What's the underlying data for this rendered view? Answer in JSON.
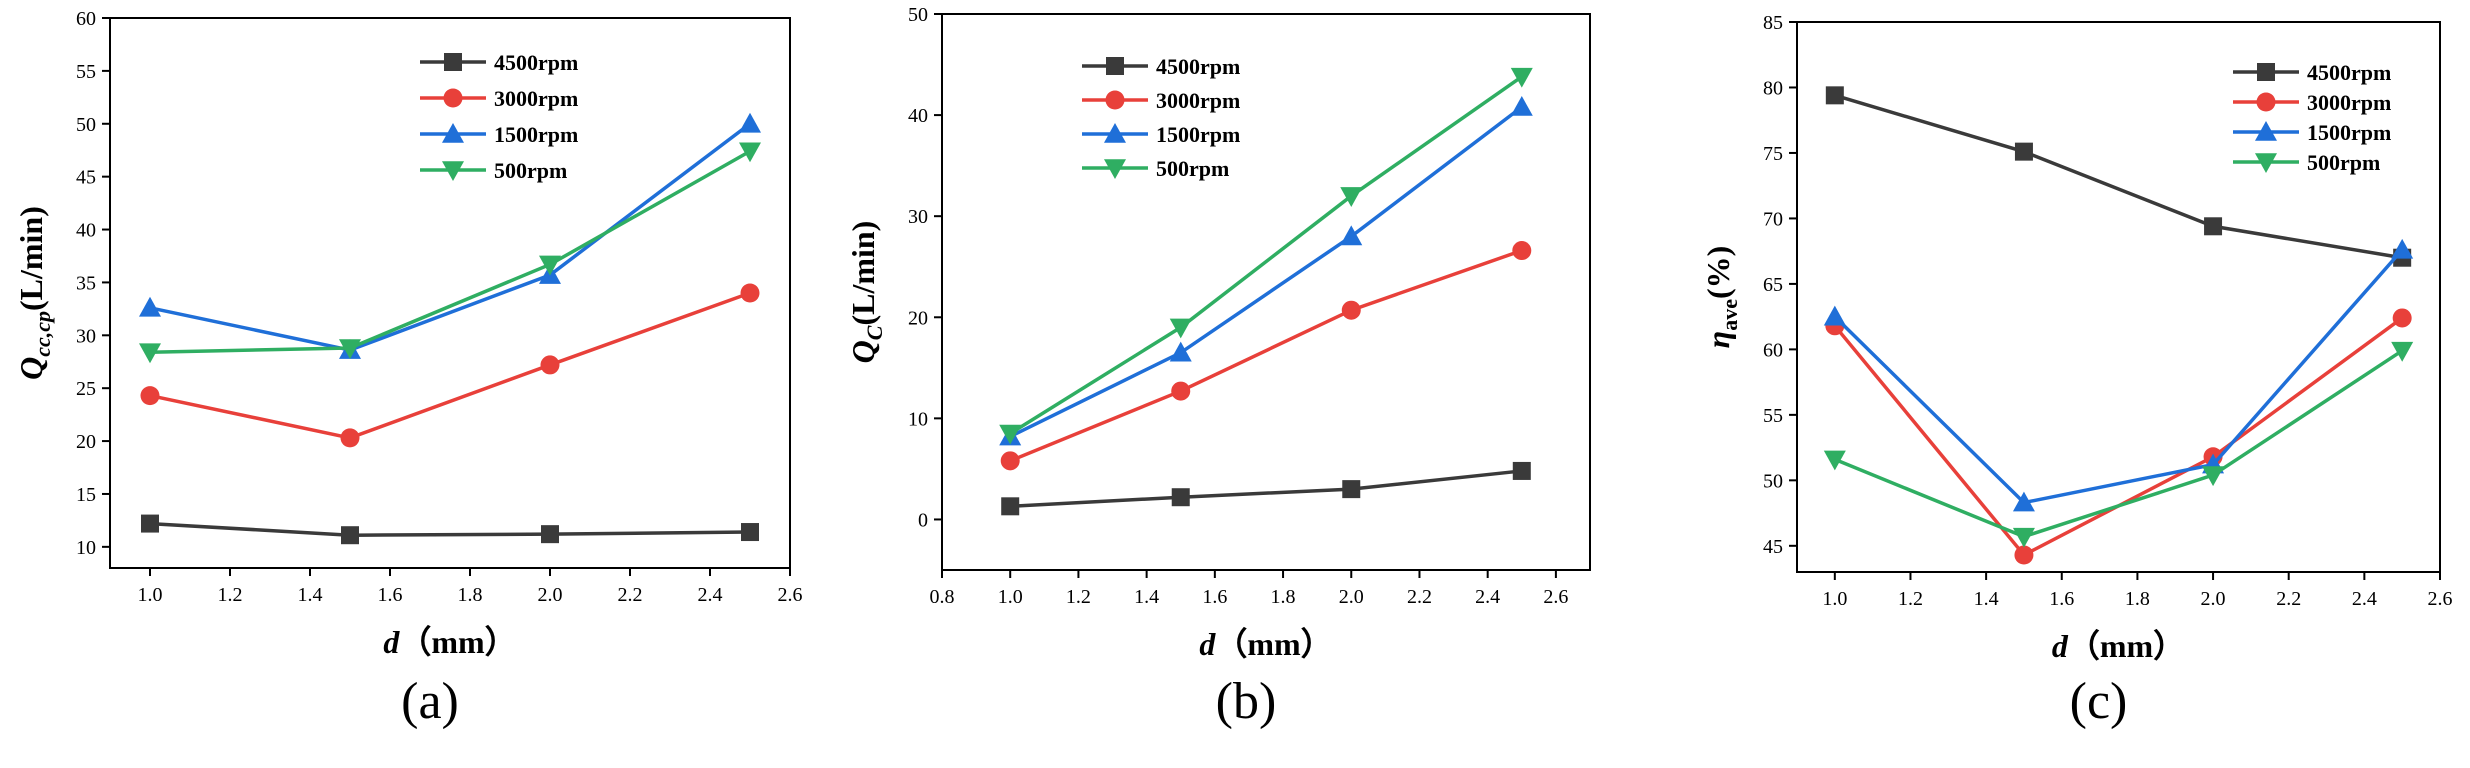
{
  "chart_data": [
    {
      "type": "line",
      "panel_label": "(a)",
      "xlabel": "d（mm）",
      "ylabel": "Q_cc,cp(L/min)",
      "ylabel_parts": {
        "main": "Q",
        "sub": "cc,cp",
        "tail": "(L/min)"
      },
      "xlim": [
        0.9,
        2.6
      ],
      "ylim": [
        8,
        60
      ],
      "xticks": [
        1.0,
        1.2,
        1.4,
        1.6,
        1.8,
        2.0,
        2.2,
        2.4,
        2.6
      ],
      "yticks": [
        10,
        15,
        20,
        25,
        30,
        35,
        40,
        45,
        50,
        55,
        60
      ],
      "legend_position": "top-center",
      "x": [
        1.0,
        1.5,
        2.0,
        2.5
      ],
      "series": [
        {
          "name": "4500rpm",
          "marker": "square",
          "color": "#3a3a3a",
          "values": [
            12.2,
            11.1,
            11.2,
            11.4
          ]
        },
        {
          "name": "3000rpm",
          "marker": "circle",
          "color": "#e8403a",
          "values": [
            24.3,
            20.3,
            27.2,
            34.0
          ]
        },
        {
          "name": "1500rpm",
          "marker": "triangle-up",
          "color": "#1f6fd8",
          "values": [
            32.6,
            28.6,
            35.7,
            50.0
          ]
        },
        {
          "name": "500rpm",
          "marker": "triangle-down",
          "color": "#2fae62",
          "values": [
            28.4,
            28.8,
            36.7,
            47.4
          ]
        }
      ]
    },
    {
      "type": "line",
      "panel_label": "(b)",
      "xlabel": "d（mm）",
      "ylabel": "Q_C(L/min)",
      "ylabel_parts": {
        "main": "Q",
        "sub": "C",
        "tail": "(L/min)"
      },
      "xlim": [
        0.8,
        2.7
      ],
      "ylim": [
        -5,
        50
      ],
      "xticks": [
        0.8,
        1.0,
        1.2,
        1.4,
        1.6,
        1.8,
        2.0,
        2.2,
        2.4,
        2.6
      ],
      "yticks": [
        0,
        10,
        20,
        30,
        40,
        50
      ],
      "legend_position": "top-left",
      "x": [
        1.0,
        1.5,
        2.0,
        2.5
      ],
      "series": [
        {
          "name": "4500rpm",
          "marker": "square",
          "color": "#3a3a3a",
          "values": [
            1.3,
            2.2,
            3.0,
            4.8
          ]
        },
        {
          "name": "3000rpm",
          "marker": "circle",
          "color": "#e8403a",
          "values": [
            5.8,
            12.7,
            20.7,
            26.6
          ]
        },
        {
          "name": "1500rpm",
          "marker": "triangle-up",
          "color": "#1f6fd8",
          "values": [
            8.2,
            16.5,
            28.0,
            40.8
          ]
        },
        {
          "name": "500rpm",
          "marker": "triangle-down",
          "color": "#2fae62",
          "values": [
            8.5,
            19.0,
            32.0,
            43.8
          ]
        }
      ]
    },
    {
      "type": "line",
      "panel_label": "(c)",
      "xlabel": "d（mm）",
      "ylabel": "η_ave(%)",
      "ylabel_parts": {
        "main": "η",
        "sub": "ave",
        "tail": "(%)"
      },
      "xlim": [
        0.9,
        2.6
      ],
      "ylim": [
        43,
        85
      ],
      "xticks": [
        1.0,
        1.2,
        1.4,
        1.6,
        1.8,
        2.0,
        2.2,
        2.4,
        2.6
      ],
      "yticks": [
        45,
        50,
        55,
        60,
        65,
        70,
        75,
        80,
        85
      ],
      "legend_position": "top-right",
      "x": [
        1.0,
        1.5,
        2.0,
        2.5
      ],
      "series": [
        {
          "name": "4500rpm",
          "marker": "square",
          "color": "#3a3a3a",
          "values": [
            79.4,
            75.1,
            69.4,
            67.0
          ]
        },
        {
          "name": "3000rpm",
          "marker": "circle",
          "color": "#e8403a",
          "values": [
            61.8,
            44.3,
            51.8,
            62.4
          ]
        },
        {
          "name": "1500rpm",
          "marker": "triangle-up",
          "color": "#1f6fd8",
          "values": [
            62.5,
            48.3,
            51.2,
            67.6
          ]
        },
        {
          "name": "500rpm",
          "marker": "triangle-down",
          "color": "#2fae62",
          "values": [
            51.6,
            45.7,
            50.4,
            59.9
          ]
        }
      ]
    }
  ]
}
